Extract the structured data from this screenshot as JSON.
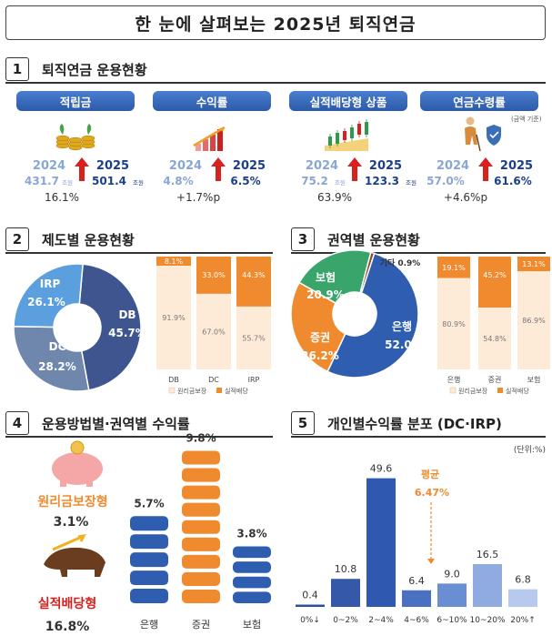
{
  "title": "한 눈에 살펴보는 2025년 퇴직연금",
  "colors": {
    "navy": "#1c3f8a",
    "blue": "#2f5eb0",
    "light_blue": "#8aa6d6",
    "orange": "#f08a2e",
    "light_orange": "#fdebd8",
    "green": "#3aa56b",
    "red": "#d8211c"
  },
  "sections": {
    "s1": {
      "num": "1",
      "title": "퇴직연금 운용현황"
    },
    "s2": {
      "num": "2",
      "title": "제도별 운용현황"
    },
    "s3": {
      "num": "3",
      "title": "권역별 운용현황"
    },
    "s4": {
      "num": "4",
      "title": "운용방법별·권역별 수익률"
    },
    "s5": {
      "num": "5",
      "title": "개인별수익률 분포 (DC·IRP)"
    }
  },
  "cards": [
    {
      "title": "적립금",
      "icon": "coins-plant-icon",
      "year_prev": "2024",
      "year_curr": "2025",
      "val_prev": "431.7",
      "unit_prev": "조원",
      "val_curr": "501.4",
      "unit_curr": "조원",
      "change": "16.1%"
    },
    {
      "title": "수익률",
      "icon": "rising-bar-chart-icon",
      "year_prev": "2024",
      "year_curr": "2025",
      "val_prev": "4.8%",
      "unit_prev": "",
      "val_curr": "6.5%",
      "unit_curr": "",
      "change": "+1.7%p"
    },
    {
      "title": "실적배당형 상품",
      "icon": "candlestick-chart-icon",
      "year_prev": "2024",
      "year_curr": "2025",
      "val_prev": "75.2",
      "unit_prev": "조원",
      "val_curr": "123.3",
      "unit_curr": "조원",
      "change": "63.9%"
    },
    {
      "title": "연금수령률",
      "icon": "elderly-person-shield-icon",
      "note": "(금액 기준)",
      "year_prev": "2024",
      "year_curr": "2025",
      "val_prev": "57.0%",
      "unit_prev": "",
      "val_curr": "61.6%",
      "unit_curr": "",
      "change": "+4.6%p"
    }
  ],
  "chart_data": [
    {
      "id": "system_donut",
      "type": "pie",
      "slices": [
        {
          "name": "DB",
          "value": 45.7,
          "label": "45.7%",
          "color": "#3f5590"
        },
        {
          "name": "DC",
          "value": 28.2,
          "label": "28.2%",
          "color": "#6f86ad"
        },
        {
          "name": "IRP",
          "value": 26.1,
          "label": "26.1%",
          "color": "#5b9fdf"
        }
      ]
    },
    {
      "id": "system_stack",
      "type": "bar",
      "stacked": true,
      "categories": [
        "DB",
        "DC",
        "IRP"
      ],
      "series": [
        {
          "name": "원리금보장",
          "values": [
            91.9,
            67.0,
            55.7
          ],
          "labels": [
            "91.9%",
            "67.0%",
            "55.7%"
          ],
          "color": "#fdebd8"
        },
        {
          "name": "실적배당",
          "values": [
            8.1,
            33.0,
            44.3
          ],
          "labels": [
            "8.1%",
            "33.0%",
            "44.3%"
          ],
          "color": "#f08a2e"
        }
      ],
      "ylim": [
        0,
        100
      ]
    },
    {
      "id": "region_donut",
      "type": "pie",
      "slices": [
        {
          "name": "은행",
          "value": 52.0,
          "label": "52.0%",
          "color": "#2f5eb0"
        },
        {
          "name": "증권",
          "value": 26.2,
          "label": "26.2%",
          "color": "#f08a2e"
        },
        {
          "name": "보험",
          "value": 20.9,
          "label": "20.9%",
          "color": "#3aa56b"
        },
        {
          "name": "기타",
          "value": 0.9,
          "label": "0.9%",
          "color": "#8a4a2a"
        }
      ]
    },
    {
      "id": "region_stack",
      "type": "bar",
      "stacked": true,
      "categories": [
        "은행",
        "증권",
        "보험"
      ],
      "series": [
        {
          "name": "원리금보장",
          "values": [
            80.9,
            54.8,
            86.9
          ],
          "labels": [
            "80.9%",
            "54.8%",
            "86.9%"
          ],
          "color": "#fdebd8"
        },
        {
          "name": "실적배당",
          "values": [
            19.1,
            45.2,
            13.1
          ],
          "labels": [
            "19.1%",
            "45.2%",
            "13.1%"
          ],
          "color": "#f08a2e"
        }
      ],
      "ylim": [
        0,
        100
      ]
    },
    {
      "id": "method_return",
      "type": "bar",
      "guaranteed": {
        "name": "원리금보장형",
        "value": "3.1%"
      },
      "performance": {
        "name": "실적배당형",
        "value": "16.8%"
      },
      "categories": [
        "은행",
        "증권",
        "보험"
      ],
      "values": [
        5.7,
        9.8,
        3.8
      ],
      "labels": [
        "5.7%",
        "9.8%",
        "3.8%"
      ],
      "colors": [
        "#2f5eb0",
        "#f08a2e",
        "#2f5eb0"
      ]
    },
    {
      "id": "individual_distribution",
      "type": "bar",
      "unit_note": "(단위:%)",
      "categories": [
        "0%↓",
        "0~2%",
        "2~4%",
        "4~6%",
        "6~10%",
        "10~20%",
        "20%↑"
      ],
      "values": [
        0.4,
        10.8,
        49.6,
        6.4,
        9.0,
        16.5,
        6.8
      ],
      "labels": [
        "0.4",
        "10.8",
        "49.6",
        "6.4",
        "9.0",
        "16.5",
        "6.8"
      ],
      "ylim": [
        0,
        55
      ],
      "average": {
        "label": "평균",
        "value": "6.47%"
      }
    }
  ]
}
